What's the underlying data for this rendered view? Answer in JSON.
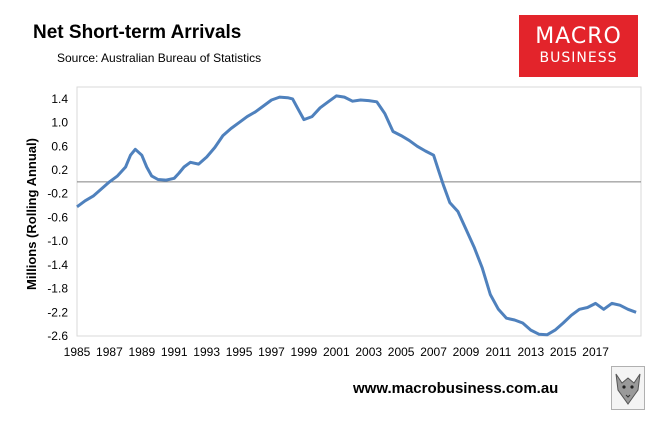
{
  "title": "Net Short-term Arrivals",
  "subtitle": "Source: Australian Bureau of Statistics",
  "brand": {
    "line1": "MACRO",
    "line2": "BUSINESS",
    "color": "#e3242b"
  },
  "footer": {
    "url": "www.macrobusiness.com.au"
  },
  "chart_data": {
    "type": "line",
    "ylabel": "Millions (Rolling Annual)",
    "xlabel": "",
    "ylim": [
      -2.6,
      1.6
    ],
    "xlim": [
      1985,
      2019.8
    ],
    "yticks": [
      1.4,
      1.0,
      0.6,
      0.2,
      -0.2,
      -0.6,
      -1.0,
      -1.4,
      -1.8,
      -2.2,
      -2.6
    ],
    "ytick_labels": [
      "1.4",
      "1.0",
      "0.6",
      "0.2",
      "-0.2",
      "-0.6",
      "-1.0",
      "-1.4",
      "-1.8",
      "-2.2",
      "-2.6"
    ],
    "xticks": [
      "1985",
      "1987",
      "1989",
      "1991",
      "1993",
      "1995",
      "1997",
      "1999",
      "2001",
      "2003",
      "2005",
      "2007",
      "2009",
      "2011",
      "2013",
      "2015",
      "2017"
    ],
    "zero_line": true,
    "grid": false,
    "line_color": "#4f81bd",
    "series": [
      {
        "x": [
          1985.0,
          1985.5,
          1986.0,
          1986.5,
          1987.0,
          1987.5,
          1988.0,
          1988.3,
          1988.6,
          1989.0,
          1989.3,
          1989.6,
          1990.0,
          1990.5,
          1991.0,
          1991.3,
          1991.6,
          1992.0,
          1992.5,
          1993.0,
          1993.5,
          1994.0,
          1994.5,
          1995.0,
          1995.5,
          1996.0,
          1996.5,
          1997.0,
          1997.5,
          1998.0,
          1998.3,
          1998.6,
          1999.0,
          1999.5,
          2000.0,
          2000.5,
          2001.0,
          2001.5,
          2002.0,
          2002.5,
          2003.0,
          2003.5,
          2004.0,
          2004.5,
          2005.0,
          2005.5,
          2006.0,
          2006.5,
          2007.0,
          2007.3,
          2007.6,
          2008.0,
          2008.5,
          2009.0,
          2009.5,
          2010.0,
          2010.5,
          2011.0,
          2011.5,
          2012.0,
          2012.5,
          2013.0,
          2013.5,
          2014.0,
          2014.5,
          2015.0,
          2015.5,
          2016.0,
          2016.5,
          2017.0,
          2017.5,
          2018.0,
          2018.5,
          2019.0,
          2019.5
        ],
        "y": [
          -0.42,
          -0.32,
          -0.24,
          -0.12,
          0.0,
          0.1,
          0.25,
          0.45,
          0.55,
          0.45,
          0.25,
          0.1,
          0.04,
          0.03,
          0.06,
          0.15,
          0.25,
          0.33,
          0.3,
          0.42,
          0.58,
          0.78,
          0.9,
          1.0,
          1.1,
          1.18,
          1.28,
          1.38,
          1.43,
          1.42,
          1.4,
          1.25,
          1.05,
          1.1,
          1.25,
          1.35,
          1.45,
          1.43,
          1.36,
          1.38,
          1.37,
          1.35,
          1.15,
          0.85,
          0.78,
          0.7,
          0.6,
          0.52,
          0.45,
          0.2,
          -0.05,
          -0.35,
          -0.5,
          -0.8,
          -1.1,
          -1.45,
          -1.9,
          -2.15,
          -2.3,
          -2.33,
          -2.38,
          -2.5,
          -2.57,
          -2.58,
          -2.5,
          -2.38,
          -2.25,
          -2.15,
          -2.12,
          -2.05,
          -2.15,
          -2.05,
          -2.08,
          -2.15,
          -2.2
        ]
      }
    ]
  }
}
